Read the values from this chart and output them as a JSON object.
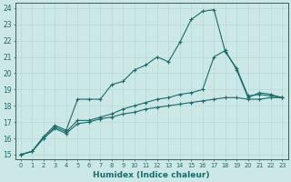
{
  "xlabel": "Humidex (Indice chaleur)",
  "bg_color": "#cce8e6",
  "line_color": "#1a6b6b",
  "grid_color": "#b8d8d6",
  "xlim": [
    -0.5,
    23.5
  ],
  "ylim": [
    14.7,
    24.3
  ],
  "xticks": [
    0,
    1,
    2,
    3,
    4,
    5,
    6,
    7,
    8,
    9,
    10,
    11,
    12,
    13,
    14,
    15,
    16,
    17,
    18,
    19,
    20,
    21,
    22,
    23
  ],
  "yticks": [
    15,
    16,
    17,
    18,
    19,
    20,
    21,
    22,
    23,
    24
  ],
  "series": [
    {
      "x": [
        0,
        1,
        2,
        3,
        4,
        5,
        6,
        7,
        8,
        9,
        10,
        11,
        12,
        13,
        14,
        15,
        16,
        17,
        18,
        19,
        20,
        21,
        22,
        23
      ],
      "y": [
        15.0,
        15.2,
        16.1,
        16.8,
        16.5,
        18.4,
        18.4,
        18.4,
        19.3,
        19.5,
        20.2,
        20.5,
        21.0,
        20.7,
        21.9,
        23.3,
        23.8,
        23.9,
        21.3,
        20.3,
        18.6,
        18.7,
        18.6,
        18.5
      ]
    },
    {
      "x": [
        0,
        1,
        2,
        3,
        4,
        5,
        6,
        7,
        8,
        9,
        10,
        11,
        12,
        13,
        14,
        15,
        16,
        17,
        18,
        19,
        20,
        21,
        22,
        23
      ],
      "y": [
        15.0,
        15.2,
        16.0,
        16.7,
        16.4,
        17.1,
        17.1,
        17.3,
        17.5,
        17.8,
        18.0,
        18.2,
        18.4,
        18.5,
        18.7,
        18.8,
        19.0,
        21.0,
        21.4,
        20.2,
        18.5,
        18.8,
        18.7,
        18.5
      ]
    },
    {
      "x": [
        0,
        1,
        2,
        3,
        4,
        5,
        6,
        7,
        8,
        9,
        10,
        11,
        12,
        13,
        14,
        15,
        16,
        17,
        18,
        19,
        20,
        21,
        22,
        23
      ],
      "y": [
        15.0,
        15.2,
        16.0,
        16.6,
        16.3,
        16.9,
        17.0,
        17.2,
        17.3,
        17.5,
        17.6,
        17.8,
        17.9,
        18.0,
        18.1,
        18.2,
        18.3,
        18.4,
        18.5,
        18.5,
        18.4,
        18.4,
        18.5,
        18.5
      ]
    }
  ]
}
